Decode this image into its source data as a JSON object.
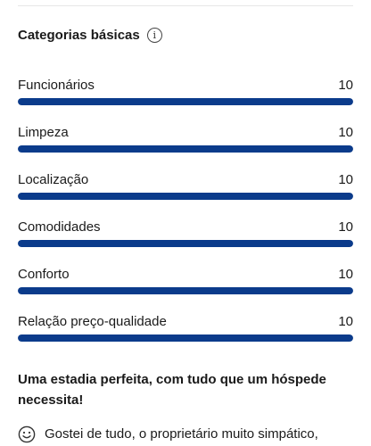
{
  "section": {
    "title": "Categorias básicas",
    "info_icon_glyph": "i"
  },
  "ratings": [
    {
      "label": "Funcionários",
      "score": "10",
      "fraction": 1.0
    },
    {
      "label": "Limpeza",
      "score": "10",
      "fraction": 1.0
    },
    {
      "label": "Localização",
      "score": "10",
      "fraction": 1.0
    },
    {
      "label": "Comodidades",
      "score": "10",
      "fraction": 1.0
    },
    {
      "label": "Conforto",
      "score": "10",
      "fraction": 1.0
    },
    {
      "label": "Relação preço-qualidade",
      "score": "10",
      "fraction": 1.0
    }
  ],
  "review": {
    "headline": "Uma estadia perfeita, com tudo que um hóspede necessita!",
    "positive_icon": "smile-icon",
    "text": "Gostei de tudo, o proprietário muito simpático,"
  },
  "colors": {
    "bar_fill": "#0b3b8b",
    "bar_track": "#e7e7e7"
  }
}
